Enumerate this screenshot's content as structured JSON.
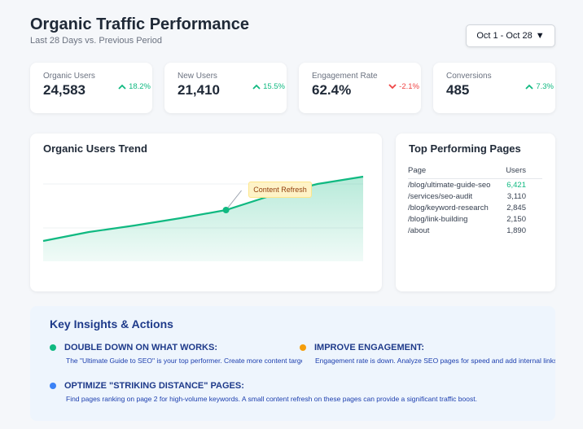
{
  "header": {
    "title": "Organic Traffic Performance",
    "subtitle": "Last 28 Days vs. Previous Period",
    "date_range": "Oct 1 - Oct 28",
    "date_caret": "▼"
  },
  "kpis": [
    {
      "label": "Organic Users",
      "value": "24,583",
      "change": "18.2%",
      "direction": "up"
    },
    {
      "label": "New Users",
      "value": "21,410",
      "change": "15.5%",
      "direction": "up"
    },
    {
      "label": "Engagement Rate",
      "value": "62.4%",
      "change": "-2.1%",
      "direction": "down"
    },
    {
      "label": "Conversions",
      "value": "485",
      "change": "7.3%",
      "direction": "up"
    }
  ],
  "colors": {
    "up": "#10b981",
    "down": "#ef4444",
    "line": "#10b981",
    "annotation_bg": "#fef3c7",
    "insight_green": "#10b981",
    "insight_orange": "#f59e0b",
    "insight_blue": "#3b82f6"
  },
  "trend": {
    "title": "Organic Users Trend",
    "annotation": "Content Refresh"
  },
  "chart_data": {
    "type": "area",
    "title": "Organic Users Trend",
    "x": [
      0,
      1,
      2,
      3,
      4,
      5,
      6,
      7
    ],
    "values": [
      25,
      36,
      44,
      53,
      63,
      81,
      95,
      104
    ],
    "ylim": [
      0,
      121
    ],
    "grid": true,
    "annotations": [
      {
        "x": 4,
        "text": "Content Refresh"
      }
    ]
  },
  "top_pages": {
    "title": "Top Performing Pages",
    "headers": [
      "Page",
      "Users"
    ],
    "rows": [
      {
        "page": "/blog/ultimate-guide-seo",
        "users": "6,421"
      },
      {
        "page": "/services/seo-audit",
        "users": "3,110"
      },
      {
        "page": "/blog/keyword-research",
        "users": "2,845"
      },
      {
        "page": "/blog/link-building",
        "users": "2,150"
      },
      {
        "page": "/about",
        "users": "1,890"
      }
    ]
  },
  "insights": {
    "title": "Key Insights & Actions",
    "items": [
      {
        "heading": "DOUBLE DOWN ON WHAT WORKS:",
        "text": "The \"Ultimate Guide to SEO\" is your top performer. Create more content targeting its topic cluster."
      },
      {
        "heading": "IMPROVE ENGAGEMENT:",
        "text": "Engagement rate is down. Analyze SEO pages for speed and add internal links."
      },
      {
        "heading": "OPTIMIZE \"STRIKING DISTANCE\" PAGES:",
        "text": "Find pages ranking on page 2 for high-volume keywords. A small content refresh on these pages can provide a significant traffic boost."
      }
    ]
  }
}
